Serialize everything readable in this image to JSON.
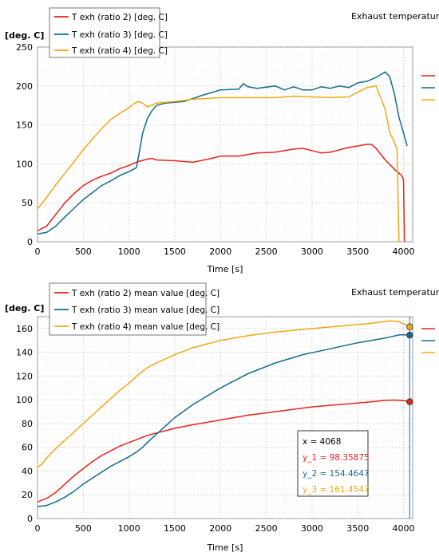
{
  "chart_data": [
    {
      "type": "line",
      "title": "Exhaust temperature",
      "ylabel": "[deg. C]",
      "xlabel": "Time [s]",
      "xlim": [
        0,
        4100
      ],
      "ylim": [
        0,
        250
      ],
      "xticks": [
        0,
        500,
        1000,
        1500,
        2000,
        2500,
        3000,
        3500,
        4000
      ],
      "yticks": [
        0,
        50,
        100,
        150,
        200,
        250
      ],
      "grid": true,
      "legend_position": "top-left",
      "series": [
        {
          "name": "T exh (ratio 2) [deg. C]",
          "color": "#e8221c",
          "x": [
            0,
            100,
            200,
            300,
            400,
            500,
            600,
            700,
            800,
            900,
            1000,
            1100,
            1200,
            1250,
            1300,
            1500,
            1700,
            1900,
            2000,
            2200,
            2400,
            2600,
            2800,
            2900,
            3000,
            3100,
            3200,
            3400,
            3600,
            3650,
            3700,
            3800,
            3900,
            3980,
            4000,
            4010
          ],
          "y": [
            14,
            20,
            35,
            50,
            62,
            72,
            79,
            84,
            88,
            94,
            98,
            103,
            106,
            107,
            105,
            104,
            102,
            107,
            110,
            110,
            114,
            115,
            119,
            120,
            117,
            114,
            115,
            121,
            125,
            125,
            120,
            105,
            93,
            85,
            80,
            0
          ]
        },
        {
          "name": "T exh (ratio 3) [deg. C]",
          "color": "#136b8f",
          "x": [
            0,
            100,
            200,
            300,
            400,
            500,
            600,
            700,
            800,
            900,
            1000,
            1080,
            1110,
            1150,
            1200,
            1250,
            1300,
            1400,
            1600,
            1800,
            2000,
            2200,
            2250,
            2300,
            2400,
            2600,
            2700,
            2800,
            2900,
            3000,
            3100,
            3200,
            3300,
            3400,
            3500,
            3600,
            3700,
            3800,
            3850,
            3900,
            3950,
            4000,
            4040
          ],
          "y": [
            10,
            12,
            20,
            32,
            43,
            54,
            63,
            72,
            78,
            85,
            90,
            95,
            113,
            140,
            158,
            168,
            175,
            178,
            180,
            188,
            195,
            196,
            203,
            199,
            197,
            200,
            195,
            199,
            195,
            195,
            199,
            197,
            200,
            198,
            204,
            206,
            211,
            218,
            212,
            190,
            160,
            140,
            123
          ]
        },
        {
          "name": "T exh (ratio 4) [deg. C]",
          "color": "#f2a813",
          "x": [
            0,
            100,
            200,
            300,
            400,
            500,
            600,
            700,
            800,
            900,
            1000,
            1050,
            1100,
            1150,
            1200,
            1300,
            1500,
            1700,
            2000,
            2200,
            2400,
            2600,
            2800,
            3000,
            3200,
            3400,
            3500,
            3600,
            3700,
            3800,
            3850,
            3900,
            3930,
            3950
          ],
          "y": [
            42,
            57,
            73,
            88,
            103,
            118,
            132,
            145,
            157,
            165,
            172,
            177,
            180,
            178,
            173,
            178,
            180,
            183,
            185,
            185,
            185,
            185,
            187,
            186,
            185,
            186,
            192,
            198,
            200,
            170,
            140,
            128,
            118,
            0
          ]
        }
      ]
    },
    {
      "type": "line",
      "title": "Exhaust temperature",
      "ylabel": "[deg. C]",
      "xlabel": "Time [s]",
      "xlim": [
        0,
        4100
      ],
      "ylim": [
        0,
        170
      ],
      "xticks": [
        0,
        500,
        1000,
        1500,
        2000,
        2500,
        3000,
        3500,
        4000
      ],
      "yticks": [
        0,
        20,
        40,
        60,
        80,
        100,
        120,
        140,
        160
      ],
      "grid": true,
      "legend_position": "top-left",
      "cursor_x": 4068,
      "series": [
        {
          "name": "T exh (ratio 2) mean value [deg. C]",
          "color": "#e8221c",
          "x": [
            0,
            100,
            200,
            300,
            400,
            500,
            600,
            700,
            800,
            900,
            1000,
            1100,
            1200,
            1300,
            1400,
            1500,
            1700,
            2000,
            2300,
            2600,
            3000,
            3300,
            3600,
            3800,
            3900,
            4000,
            4068
          ],
          "y": [
            14,
            17,
            22,
            29,
            36,
            42,
            48,
            53,
            57,
            61,
            64,
            67,
            70,
            72,
            74,
            76,
            79,
            83,
            87,
            90,
            94,
            96,
            98,
            99.5,
            99.8,
            99.3,
            98.36
          ]
        },
        {
          "name": "T exh (ratio 3) mean value [deg. C]",
          "color": "#136b8f",
          "x": [
            0,
            100,
            200,
            300,
            400,
            500,
            600,
            700,
            800,
            900,
            1000,
            1100,
            1150,
            1200,
            1300,
            1400,
            1500,
            1700,
            2000,
            2300,
            2600,
            2900,
            3200,
            3500,
            3800,
            3950,
            4000,
            4068
          ],
          "y": [
            10,
            11,
            14,
            18,
            23,
            29,
            34,
            39,
            44,
            48,
            52,
            57,
            60,
            64,
            71,
            78,
            85,
            96,
            110,
            122,
            131,
            138,
            143,
            148,
            152,
            154.6,
            154.8,
            154.46
          ]
        },
        {
          "name": "T exh (ratio 4) mean value [deg. C]",
          "color": "#f2a813",
          "x": [
            0,
            50,
            100,
            200,
            300,
            400,
            500,
            600,
            700,
            800,
            900,
            1000,
            1100,
            1200,
            1300,
            1500,
            1700,
            2000,
            2300,
            2600,
            3000,
            3300,
            3600,
            3850,
            3950,
            4000,
            4068
          ],
          "y": [
            43,
            46,
            51,
            59,
            66,
            73,
            80,
            87,
            94,
            101,
            108,
            114,
            121,
            127,
            131,
            138,
            144,
            150,
            154,
            157,
            160,
            162,
            164,
            166.5,
            166,
            164,
            161.45
          ]
        }
      ]
    }
  ],
  "readout": {
    "x": "x      = 4068",
    "y1": "y_1 = 98.35875",
    "y2": "y_2 = 154.4647",
    "y3": "y_3 = 161.4547"
  }
}
